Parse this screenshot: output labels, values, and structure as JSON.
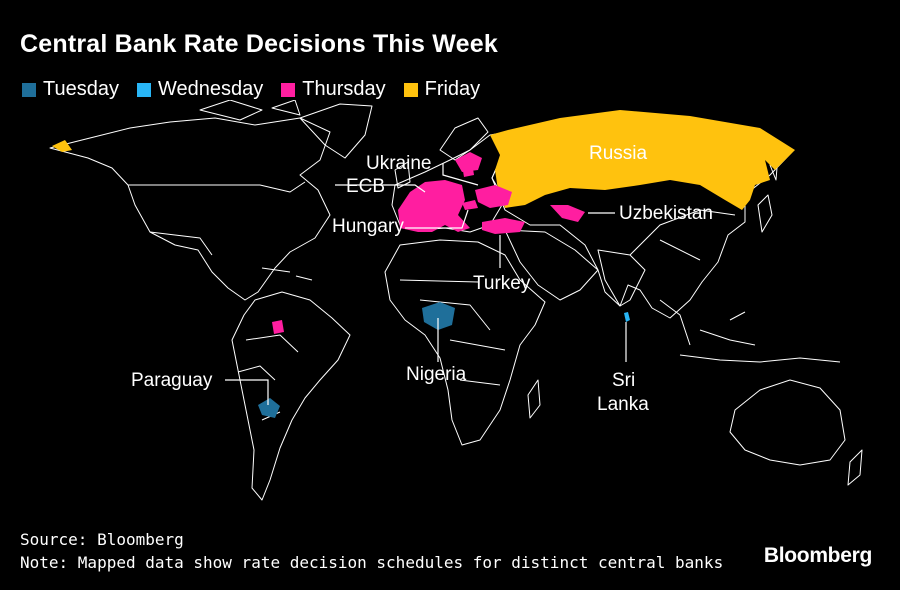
{
  "title": "Central Bank Rate Decisions This Week",
  "legend": [
    {
      "label": "Tuesday",
      "color": "#1f6f9a"
    },
    {
      "label": "Wednesday",
      "color": "#29b6f6"
    },
    {
      "label": "Thursday",
      "color": "#ff1ea0"
    },
    {
      "label": "Friday",
      "color": "#ffc20e"
    }
  ],
  "map_labels": {
    "russia": "Russia",
    "ukraine": "Ukraine",
    "ecb": "ECB",
    "hungary": "Hungary",
    "uzbekistan": "Uzbekistan",
    "turkey": "Turkey",
    "nigeria": "Nigeria",
    "paraguay": "Paraguay",
    "sri_lanka_1": "Sri",
    "sri_lanka_2": "Lanka"
  },
  "source": "Source: Bloomberg",
  "note": "Note: Mapped data show rate decision schedules for distinct central banks",
  "brand": "Bloomberg"
}
